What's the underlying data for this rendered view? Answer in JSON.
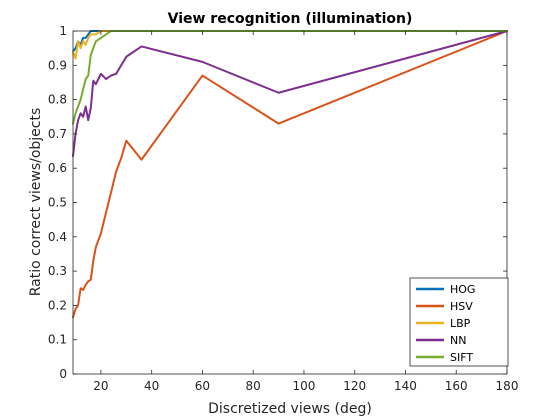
{
  "chart_data": {
    "type": "line",
    "title": "View recognition (illumination)",
    "xlabel": "Discretized views (deg)",
    "ylabel": "Ratio correct views/objects",
    "xlim": [
      9,
      180
    ],
    "ylim": [
      0,
      1
    ],
    "xticks": [
      20,
      40,
      60,
      80,
      100,
      120,
      140,
      160,
      180
    ],
    "yticks": [
      0,
      0.1,
      0.2,
      0.3,
      0.4,
      0.5,
      0.6,
      0.7,
      0.8,
      0.9,
      1
    ],
    "ytick_labels": [
      "0",
      "0.1",
      "0.2",
      "0.3",
      "0.4",
      "0.5",
      "0.6",
      "0.7",
      "0.8",
      "0.9",
      "1"
    ],
    "grid": false,
    "legend_position": "bottom-right",
    "series": [
      {
        "name": "HOG",
        "color": "#0072bd",
        "x": [
          9,
          10,
          11,
          12,
          13,
          14,
          15,
          16,
          18,
          20,
          24,
          30,
          36,
          60,
          90,
          180
        ],
        "y": [
          0.94,
          0.95,
          0.97,
          0.96,
          0.98,
          0.98,
          0.99,
          1.0,
          1.0,
          1.0,
          1.0,
          1.0,
          1.0,
          1.0,
          1.0,
          1.0
        ]
      },
      {
        "name": "HSV",
        "color": "#d95319",
        "x": [
          9,
          10,
          11,
          12,
          13,
          14,
          15,
          16,
          17,
          18,
          19,
          20,
          22,
          24,
          26,
          28,
          30,
          36,
          60,
          90,
          180
        ],
        "y": [
          0.165,
          0.19,
          0.2,
          0.25,
          0.245,
          0.26,
          0.27,
          0.275,
          0.33,
          0.37,
          0.39,
          0.41,
          0.47,
          0.53,
          0.59,
          0.63,
          0.68,
          0.625,
          0.87,
          0.73,
          1.0
        ]
      },
      {
        "name": "LBP",
        "color": "#edb120",
        "x": [
          9,
          10,
          11,
          12,
          13,
          14,
          15,
          16,
          18,
          20,
          24,
          30,
          36,
          60,
          90,
          180
        ],
        "y": [
          0.94,
          0.92,
          0.97,
          0.95,
          0.97,
          0.96,
          0.98,
          0.99,
          0.99,
          1.0,
          1.0,
          1.0,
          1.0,
          1.0,
          1.0,
          1.0
        ]
      },
      {
        "name": "NN",
        "color": "#7e2f8e",
        "x": [
          9,
          10,
          11,
          12,
          13,
          14,
          15,
          16,
          17,
          18,
          19,
          20,
          22,
          24,
          26,
          28,
          30,
          36,
          60,
          90,
          180
        ],
        "y": [
          0.635,
          0.7,
          0.74,
          0.76,
          0.75,
          0.78,
          0.74,
          0.775,
          0.855,
          0.845,
          0.86,
          0.875,
          0.86,
          0.87,
          0.875,
          0.9,
          0.925,
          0.955,
          0.91,
          0.82,
          1.0
        ]
      },
      {
        "name": "SIFT",
        "color": "#77ac30",
        "x": [
          9,
          10,
          11,
          12,
          13,
          14,
          15,
          16,
          17,
          18,
          20,
          22,
          24,
          30,
          36,
          60,
          90,
          180
        ],
        "y": [
          0.73,
          0.76,
          0.78,
          0.8,
          0.83,
          0.86,
          0.87,
          0.93,
          0.95,
          0.97,
          0.98,
          0.99,
          1.0,
          1.0,
          1.0,
          1.0,
          1.0,
          1.0
        ]
      }
    ]
  }
}
